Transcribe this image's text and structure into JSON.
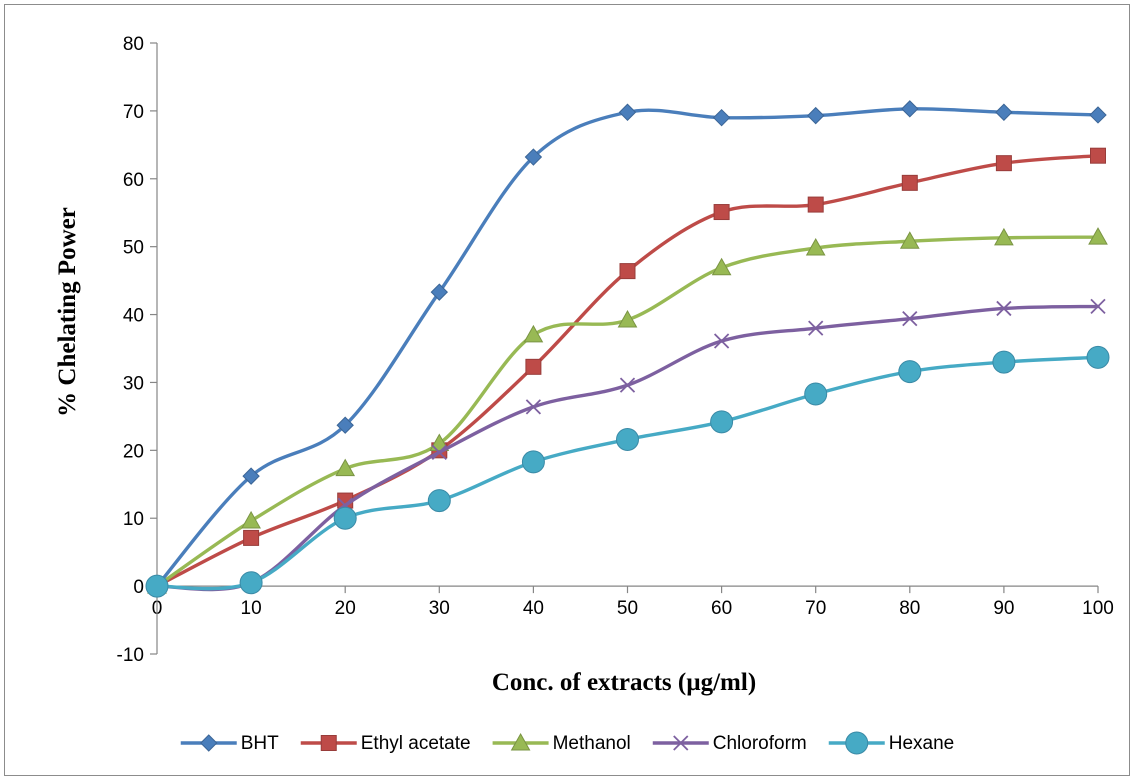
{
  "chart_data": {
    "type": "line",
    "title": "",
    "xlabel": "Conc. of extracts (µg/ml)",
    "ylabel": "% Chelating Power",
    "x": [
      0,
      10,
      20,
      30,
      40,
      50,
      60,
      70,
      80,
      90,
      100
    ],
    "xlim": [
      0,
      100
    ],
    "ylim": [
      -10,
      80
    ],
    "xticks": [
      "0",
      "10",
      "20",
      "30",
      "40",
      "50",
      "60",
      "70",
      "80",
      "90",
      "100"
    ],
    "yticks": [
      "-10",
      "0",
      "10",
      "20",
      "30",
      "40",
      "50",
      "60",
      "70",
      "80"
    ],
    "grid": false,
    "legend_position": "bottom",
    "smooth": true,
    "series": [
      {
        "name": "BHT",
        "color": "#4a7ebb",
        "marker": "diamond",
        "values": [
          0,
          16.2,
          23.7,
          43.3,
          63.2,
          69.8,
          69.0,
          69.3,
          70.3,
          69.8,
          69.4
        ]
      },
      {
        "name": "Ethyl acetate",
        "color": "#be4b48",
        "marker": "square",
        "values": [
          0,
          7.1,
          12.6,
          20.0,
          32.3,
          46.4,
          55.1,
          56.2,
          59.4,
          62.3,
          63.4
        ]
      },
      {
        "name": "Methanol",
        "color": "#98b954",
        "marker": "triangle",
        "values": [
          0,
          9.6,
          17.3,
          21.0,
          37.0,
          39.2,
          46.9,
          49.8,
          50.8,
          51.3,
          51.4
        ]
      },
      {
        "name": "Chloroform",
        "color": "#7d60a0",
        "marker": "x",
        "values": [
          0,
          0.5,
          11.9,
          19.7,
          26.4,
          29.6,
          36.1,
          38.0,
          39.4,
          40.9,
          41.2
        ]
      },
      {
        "name": "Hexane",
        "color": "#46aac5",
        "marker": "circle",
        "values": [
          0,
          0.5,
          10.0,
          12.6,
          18.3,
          21.6,
          24.2,
          28.3,
          31.6,
          33.0,
          33.7
        ]
      }
    ]
  }
}
